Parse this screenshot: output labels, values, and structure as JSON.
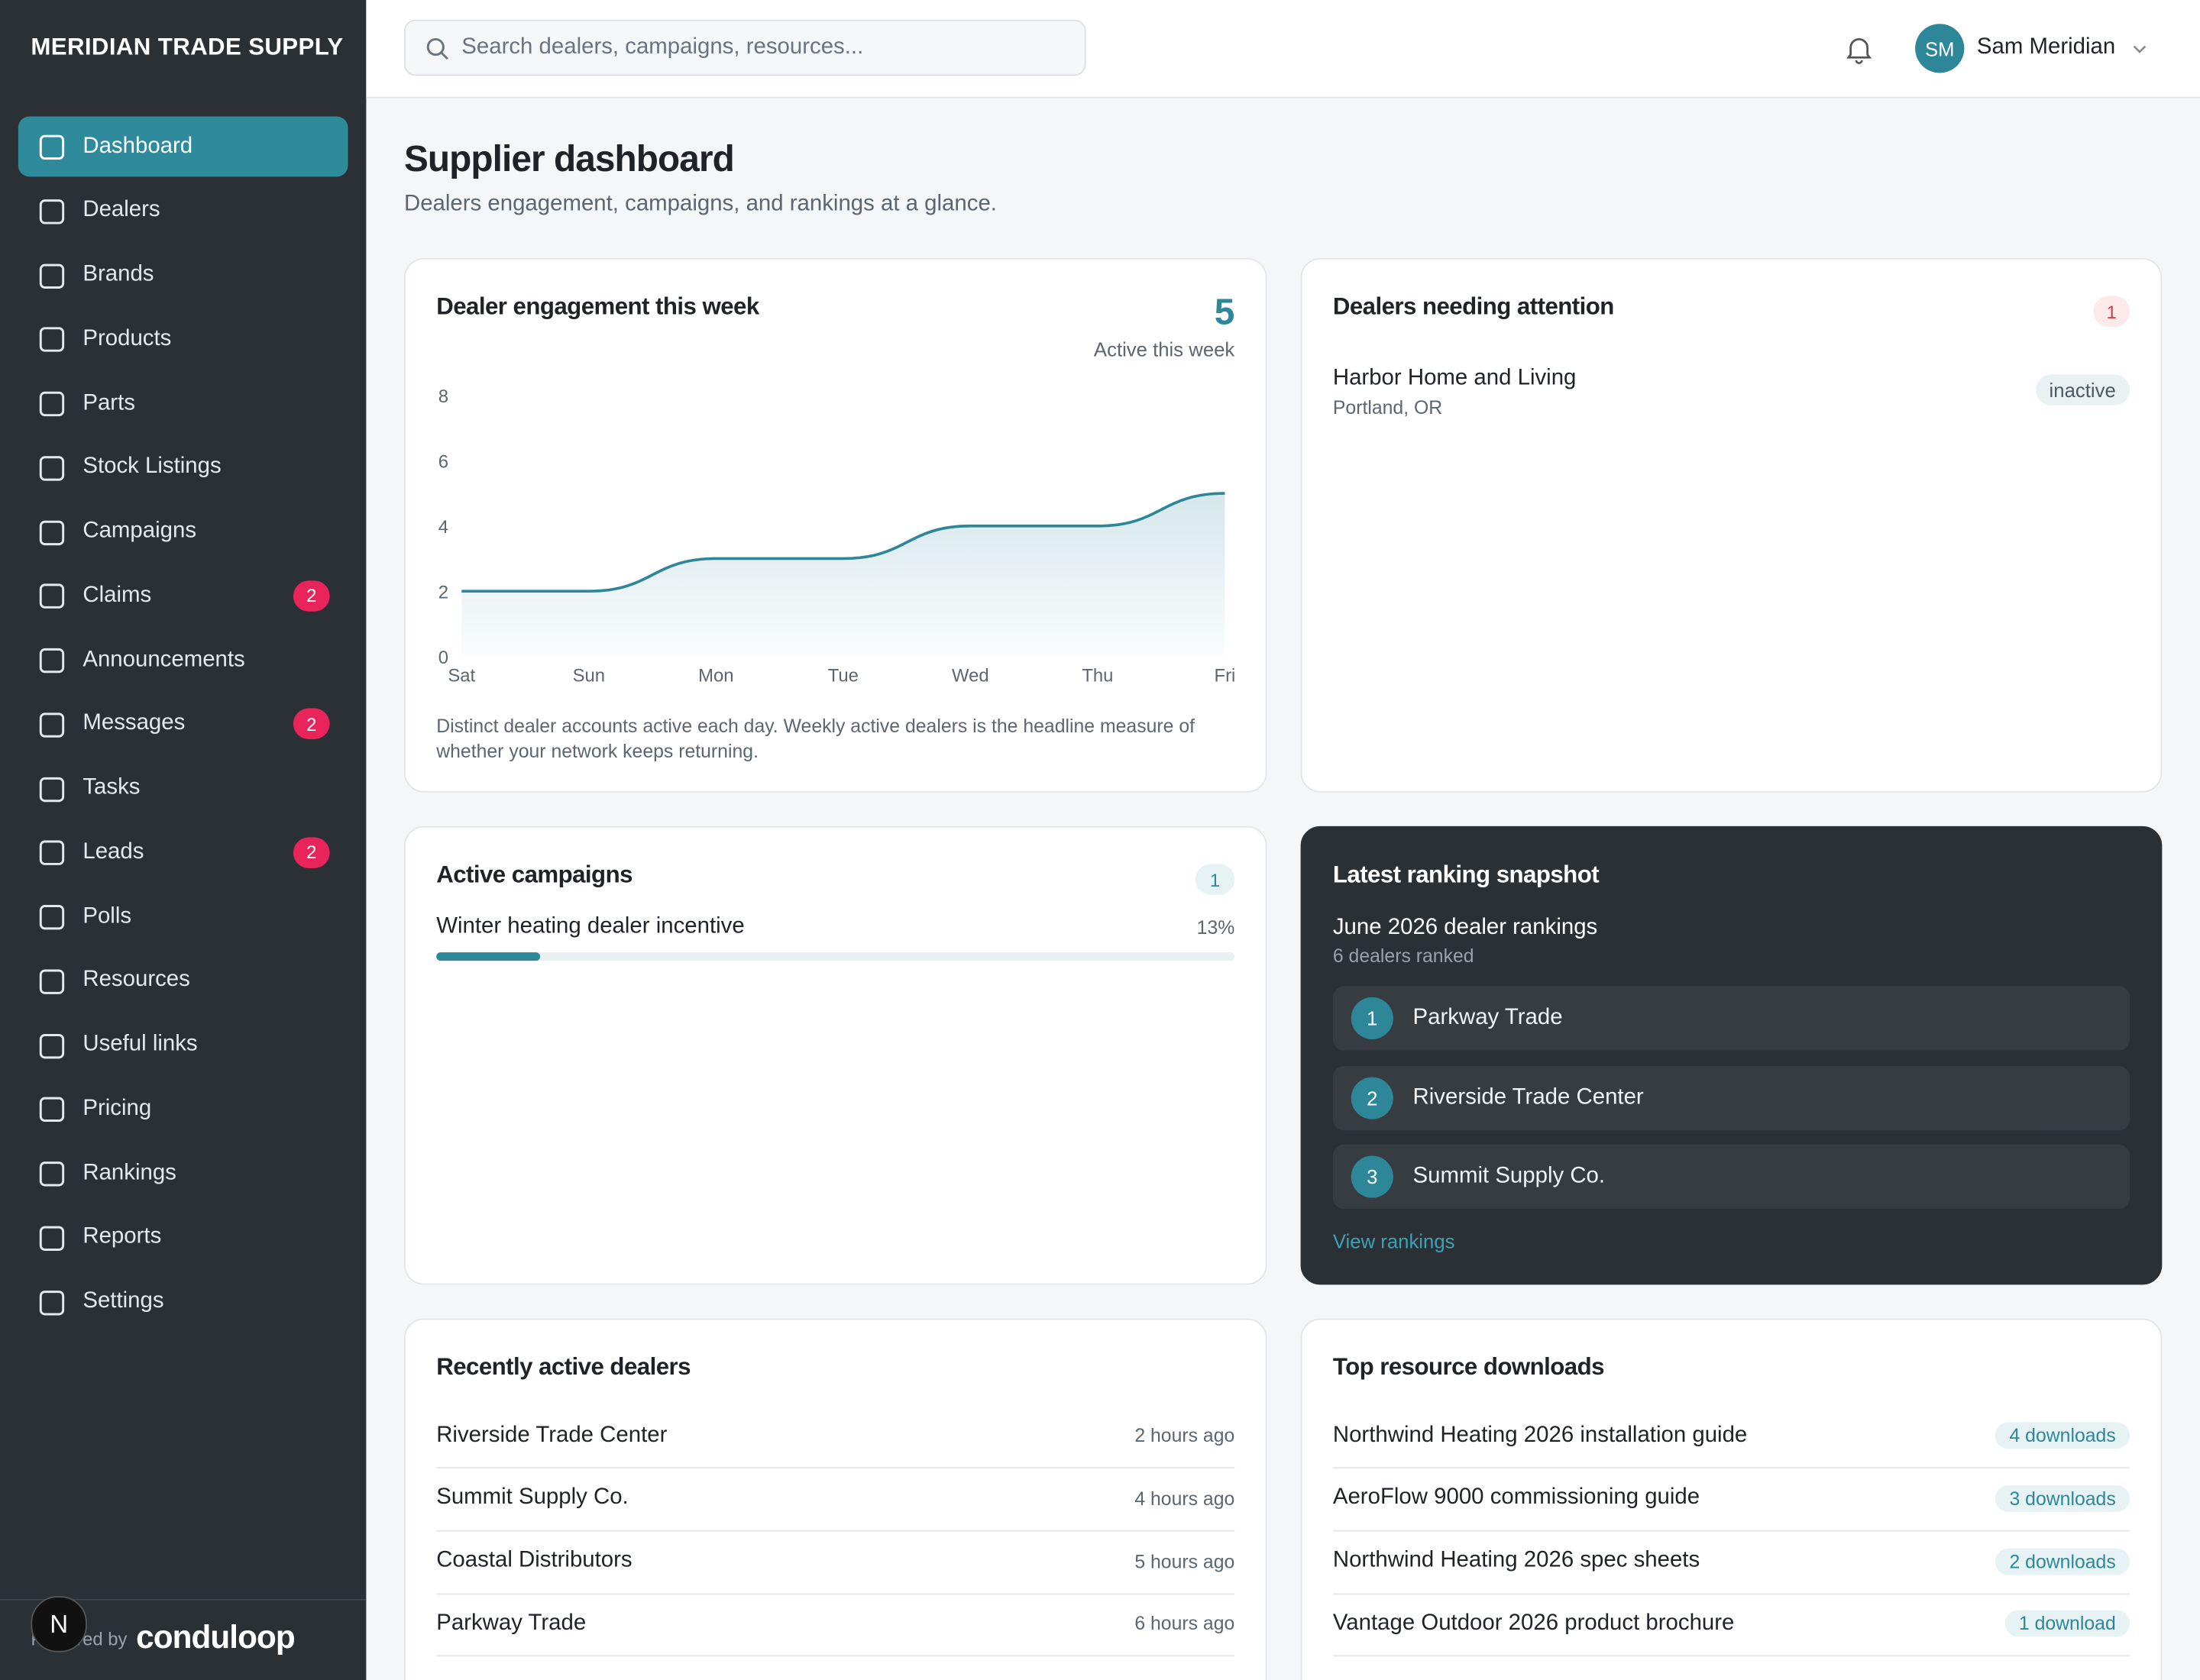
{
  "sidebar": {
    "brand": "MERIDIAN TRADE SUPPLY",
    "nav": [
      {
        "label": "Dashboard"
      },
      {
        "label": "Dealers"
      },
      {
        "label": "Brands"
      },
      {
        "label": "Products"
      },
      {
        "label": "Parts"
      },
      {
        "label": "Stock Listings"
      },
      {
        "label": "Campaigns"
      },
      {
        "label": "Claims",
        "badge": 2
      },
      {
        "label": "Announcements"
      },
      {
        "label": "Messages",
        "badge": 2
      },
      {
        "label": "Tasks"
      },
      {
        "label": "Leads",
        "badge": 2
      },
      {
        "label": "Polls"
      },
      {
        "label": "Resources"
      },
      {
        "label": "Useful links"
      },
      {
        "label": "Pricing"
      },
      {
        "label": "Rankings"
      },
      {
        "label": "Reports"
      },
      {
        "label": "Settings"
      }
    ],
    "powered_by": "Powered by",
    "logo": "conduloop"
  },
  "topbar": {
    "search_placeholder": "Search dealers, campaigns, resources...",
    "avatar": "SM",
    "user": "Sam Meridian"
  },
  "header": {
    "title": "Supplier dashboard",
    "subtitle": "Dealers engagement, campaigns, and rankings at a glance."
  },
  "engagement": {
    "kpi": 5,
    "kpi_label": "Active this week",
    "note": "Distinct dealer accounts active each day. Weekly active dealers is the headline measure of whether your network keeps returning."
  },
  "chart_data": {
    "type": "line",
    "title": "Dealer engagement this week",
    "categories": [
      "Sat",
      "Sun",
      "Mon",
      "Tue",
      "Wed",
      "Thu",
      "Fri"
    ],
    "values": [
      2,
      2,
      3,
      3,
      4,
      4,
      5
    ],
    "color": "#2e8799",
    "ylim": [
      0,
      8
    ],
    "yticks": [
      0,
      2,
      4,
      6,
      8
    ],
    "grid": false
  },
  "attention": {
    "title": "Dealers needing attention",
    "count": 1,
    "items": [
      {
        "name": "Harbor Home and Living",
        "location": "Portland, OR",
        "status": "inactive"
      }
    ]
  },
  "campaigns": {
    "title": "Active campaigns",
    "count": 1,
    "items": [
      {
        "name": "Winter heating dealer incentive",
        "progress": 13,
        "progress_label": "13%"
      }
    ]
  },
  "ranking": {
    "title": "Latest ranking snapshot",
    "period": "June 2026 dealer rankings",
    "count_label": "6 dealers ranked",
    "items": [
      {
        "rank": 1,
        "name": "Parkway Trade"
      },
      {
        "rank": 2,
        "name": "Riverside Trade Center"
      },
      {
        "rank": 3,
        "name": "Summit Supply Co."
      }
    ],
    "link": "View rankings"
  },
  "recent": {
    "title": "Recently active dealers",
    "items": [
      {
        "name": "Riverside Trade Center",
        "time": "2 hours ago"
      },
      {
        "name": "Summit Supply Co.",
        "time": "4 hours ago"
      },
      {
        "name": "Coastal Distributors",
        "time": "5 hours ago"
      },
      {
        "name": "Parkway Trade",
        "time": "6 hours ago"
      }
    ]
  },
  "downloads": {
    "title": "Top resource downloads",
    "items": [
      {
        "name": "Northwind Heating 2026 installation guide",
        "label": "4 downloads"
      },
      {
        "name": "AeroFlow 9000 commissioning guide",
        "label": "3 downloads"
      },
      {
        "name": "Northwind Heating 2026 spec sheets",
        "label": "2 downloads"
      },
      {
        "name": "Vantage Outdoor 2026 product brochure",
        "label": "1 download"
      }
    ]
  }
}
